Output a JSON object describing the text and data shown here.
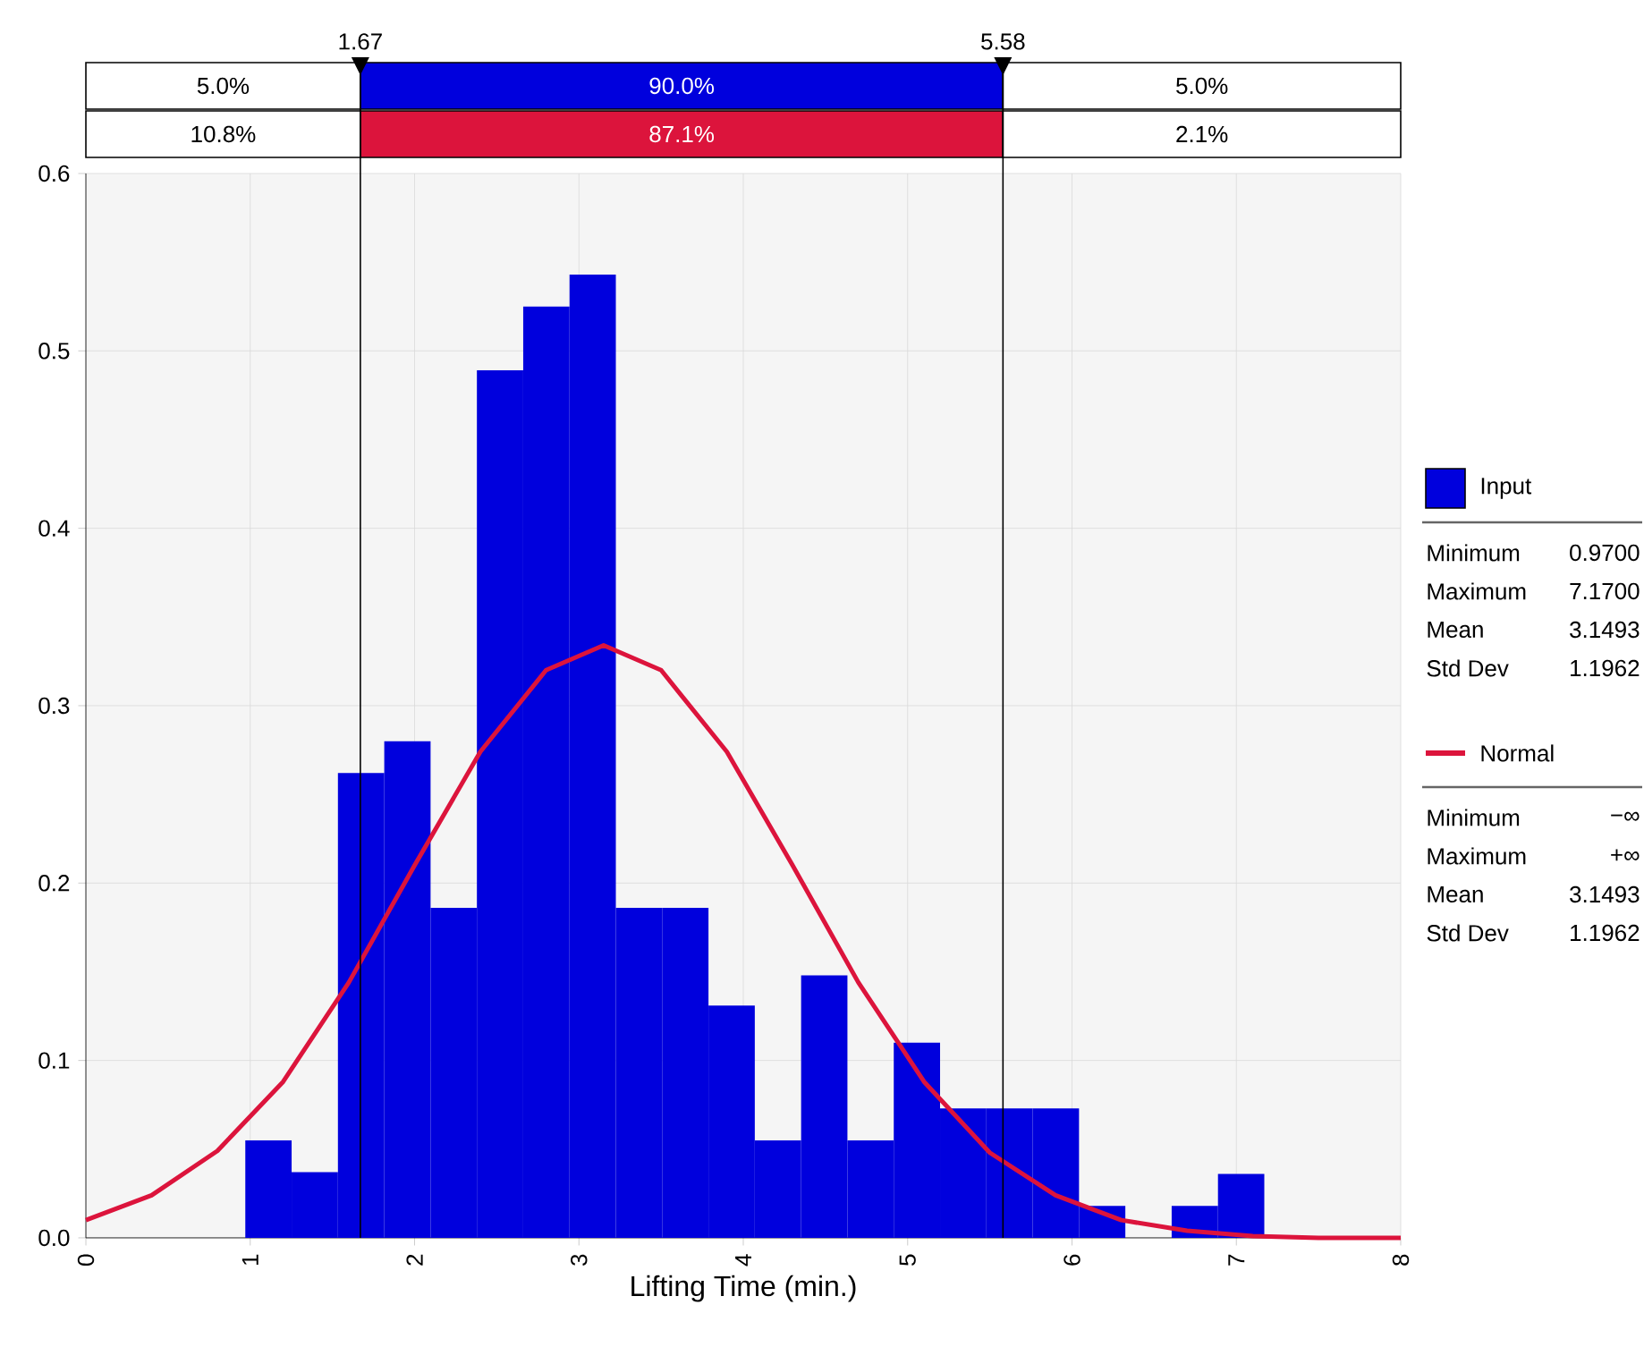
{
  "chart_data": {
    "type": "histogram",
    "xlabel": "Lifting Time (min.)",
    "bins": [
      0.97,
      1.2518,
      1.5336,
      1.8155,
      2.0973,
      2.3791,
      2.6609,
      2.9427,
      3.2245,
      3.5064,
      3.7882,
      4.07,
      4.3518,
      4.6336,
      4.9155,
      5.1973,
      5.4791,
      5.7609,
      6.0427,
      6.3245,
      6.6064,
      6.8882,
      7.17
    ],
    "series": [
      {
        "name": "Input",
        "color": "#0000dd",
        "values": [
          0.055,
          0.037,
          0.262,
          0.28,
          0.186,
          0.489,
          0.525,
          0.543,
          0.186,
          0.186,
          0.131,
          0.055,
          0.148,
          0.055,
          0.11,
          0.073,
          0.073,
          0.073,
          0.018,
          0,
          0.018,
          0.036
        ]
      },
      {
        "name": "Normal",
        "type": "line",
        "color": "#dc143c",
        "x": [
          0,
          0.4,
          0.8,
          1.2,
          1.6,
          2.0,
          2.4,
          2.8,
          3.15,
          3.5,
          3.9,
          4.3,
          4.7,
          5.1,
          5.5,
          5.9,
          6.3,
          6.7,
          7.1,
          7.5,
          8
        ],
        "values": [
          0.01,
          0.024,
          0.049,
          0.088,
          0.144,
          0.21,
          0.274,
          0.32,
          0.334,
          0.32,
          0.274,
          0.21,
          0.144,
          0.088,
          0.048,
          0.024,
          0.01,
          0.004,
          0.001,
          0.0,
          0.0
        ]
      }
    ],
    "xlim": [
      0,
      8
    ],
    "ylim": [
      0,
      0.6
    ],
    "xticks": [
      0,
      1,
      2,
      3,
      4,
      5,
      6,
      7,
      8
    ],
    "yticks": [
      {
        "value": 0,
        "label": "0.0"
      },
      {
        "value": 0.1,
        "label": "0.1"
      },
      {
        "value": 0.2,
        "label": "0.2"
      },
      {
        "value": 0.3,
        "label": "0.3"
      },
      {
        "value": 0.4,
        "label": "0.4"
      },
      {
        "value": 0.5,
        "label": "0.5"
      },
      {
        "value": 0.6,
        "label": "0.6"
      }
    ],
    "ref_lines": [
      {
        "axis": "x",
        "value": 1.67,
        "label": "1.67",
        "color": "#000000"
      },
      {
        "axis": "x",
        "value": 5.58,
        "label": "5.58",
        "color": "#000000"
      }
    ],
    "annotations": [
      "5.0%",
      "90.0%",
      "5.0%",
      "10.8%",
      "87.1%",
      "2.1%",
      "Minimum",
      "0.9700",
      "Maximum",
      "7.1700",
      "Mean",
      "3.1493",
      "Std Dev",
      "1.1962",
      "Minimum",
      "−∞",
      "Maximum",
      "+∞",
      "Mean",
      "3.1493",
      "Std Dev",
      "1.1962"
    ],
    "grid": true,
    "legend": "right"
  }
}
